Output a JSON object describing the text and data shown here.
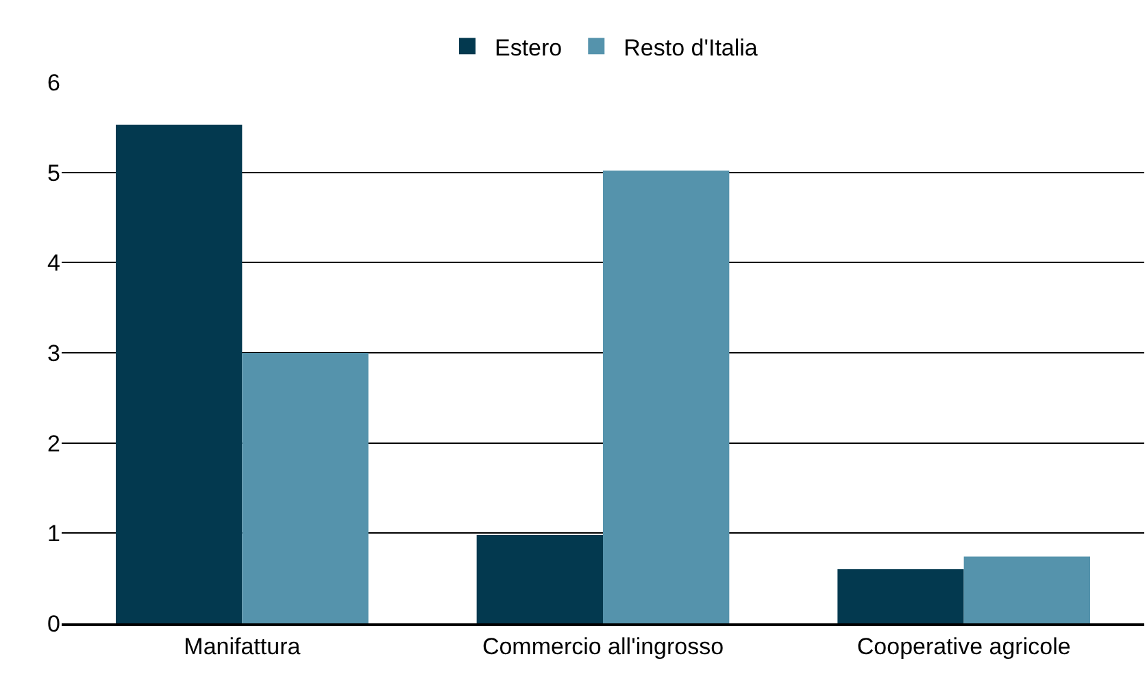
{
  "chart_data": {
    "type": "bar",
    "categories": [
      "Manifattura",
      "Commercio all'ingrosso",
      "Cooperative agricole"
    ],
    "series": [
      {
        "name": "Estero",
        "color": "#03394f",
        "values": [
          5.53,
          0.98,
          0.6
        ]
      },
      {
        "name": "Resto d'Italia",
        "color": "#5593ac",
        "values": [
          3.0,
          5.02,
          0.74
        ]
      }
    ],
    "ylim": [
      0,
      6
    ],
    "yticks": [
      0,
      1,
      2,
      3,
      4,
      5,
      6
    ],
    "grid": "y",
    "legend": "top"
  }
}
